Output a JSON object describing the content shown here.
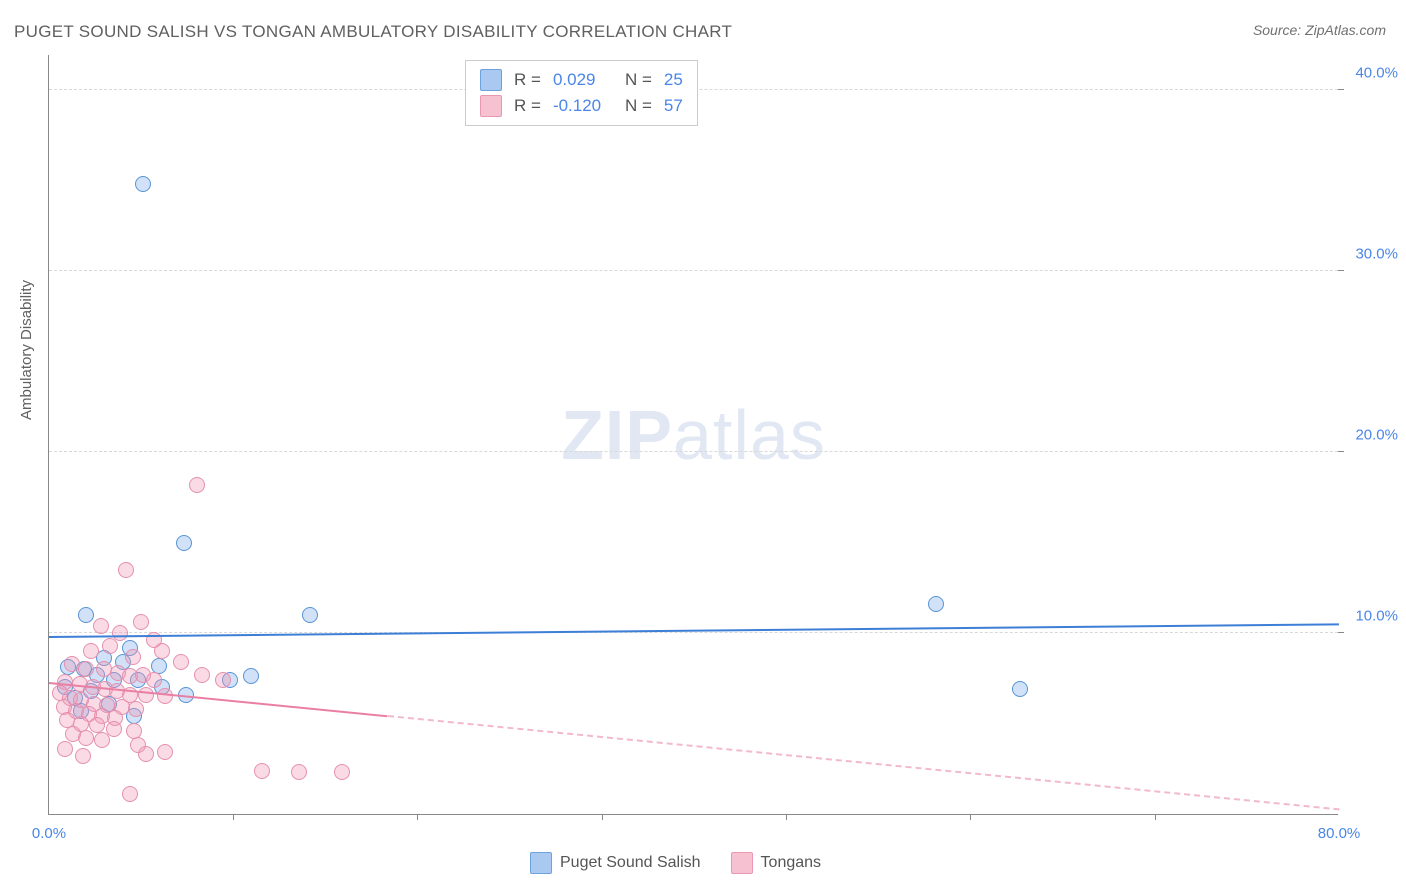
{
  "title": "PUGET SOUND SALISH VS TONGAN AMBULATORY DISABILITY CORRELATION CHART",
  "source_label": "Source: ZipAtlas.com",
  "watermark_zip": "ZIP",
  "watermark_atlas": "atlas",
  "ylabel": "Ambulatory Disability",
  "chart": {
    "type": "scatter",
    "xlim": [
      0,
      80
    ],
    "ylim": [
      0,
      42
    ],
    "xtick_labels": [
      "0.0%",
      "80.0%"
    ],
    "xtick_positions": [
      0,
      80
    ],
    "xtick_minor": [
      11.4,
      22.8,
      34.3,
      45.7,
      57.1,
      68.6
    ],
    "ytick_labels": [
      "10.0%",
      "20.0%",
      "30.0%",
      "40.0%"
    ],
    "ytick_positions": [
      10,
      20,
      30,
      40
    ],
    "background_color": "#ffffff",
    "grid_color": "#d8d8d8",
    "axis_color": "#888888",
    "tick_text_color": "#4a86e8",
    "marker_radius": 8,
    "marker_border_width": 1.3,
    "series": [
      {
        "name": "Puget Sound Salish",
        "fill": "rgba(120,170,235,0.35)",
        "stroke": "#5a94d6",
        "r_value": "0.029",
        "n_value": "25",
        "legend_swatch_fill": "#a9c9f0",
        "legend_swatch_stroke": "#6fa2dd",
        "trend": {
          "y_at_x0": 9.7,
          "y_at_xmax": 10.4,
          "color": "#3d7fd6",
          "width": 2.5,
          "dashed_after_x": 80
        },
        "points": [
          [
            5.8,
            34.8
          ],
          [
            8.4,
            15.0
          ],
          [
            16.2,
            11.0
          ],
          [
            55.0,
            11.6
          ],
          [
            60.2,
            6.9
          ],
          [
            2.3,
            11.0
          ],
          [
            5.0,
            9.2
          ],
          [
            3.4,
            8.6
          ],
          [
            4.6,
            8.4
          ],
          [
            6.8,
            8.2
          ],
          [
            1.2,
            8.1
          ],
          [
            2.2,
            8.0
          ],
          [
            3.0,
            7.7
          ],
          [
            4.0,
            7.4
          ],
          [
            5.5,
            7.4
          ],
          [
            1.0,
            7.0
          ],
          [
            2.6,
            6.8
          ],
          [
            7.0,
            7.0
          ],
          [
            8.5,
            6.6
          ],
          [
            11.2,
            7.4
          ],
          [
            12.5,
            7.6
          ],
          [
            1.6,
            6.4
          ],
          [
            3.7,
            6.1
          ],
          [
            2.0,
            5.7
          ],
          [
            5.3,
            5.4
          ]
        ]
      },
      {
        "name": "Tongans",
        "fill": "rgba(240,150,180,0.35)",
        "stroke": "#e590ae",
        "r_value": "-0.120",
        "n_value": "57",
        "legend_swatch_fill": "#f6c2d2",
        "legend_swatch_stroke": "#e998b4",
        "trend": {
          "y_at_x0": 7.2,
          "y_at_xmax": 0.2,
          "color": "#e97fa3",
          "width": 2.5,
          "dashed_after_x": 21
        },
        "points": [
          [
            9.2,
            18.2
          ],
          [
            4.8,
            13.5
          ],
          [
            3.2,
            10.4
          ],
          [
            4.4,
            10.0
          ],
          [
            5.7,
            10.6
          ],
          [
            6.5,
            9.6
          ],
          [
            3.8,
            9.3
          ],
          [
            2.6,
            9.0
          ],
          [
            5.2,
            8.7
          ],
          [
            7.0,
            9.0
          ],
          [
            8.2,
            8.4
          ],
          [
            1.4,
            8.3
          ],
          [
            2.3,
            8.0
          ],
          [
            3.4,
            8.0
          ],
          [
            4.3,
            7.8
          ],
          [
            5.0,
            7.6
          ],
          [
            5.8,
            7.7
          ],
          [
            6.5,
            7.4
          ],
          [
            1.0,
            7.3
          ],
          [
            1.9,
            7.2
          ],
          [
            2.7,
            7.0
          ],
          [
            3.5,
            6.9
          ],
          [
            4.2,
            6.8
          ],
          [
            5.0,
            6.6
          ],
          [
            6.0,
            6.6
          ],
          [
            7.2,
            6.5
          ],
          [
            0.7,
            6.7
          ],
          [
            1.3,
            6.4
          ],
          [
            2.0,
            6.3
          ],
          [
            2.8,
            6.1
          ],
          [
            3.6,
            6.0
          ],
          [
            4.5,
            5.9
          ],
          [
            5.4,
            5.8
          ],
          [
            0.9,
            5.9
          ],
          [
            1.7,
            5.7
          ],
          [
            2.5,
            5.5
          ],
          [
            3.3,
            5.4
          ],
          [
            4.1,
            5.3
          ],
          [
            1.1,
            5.2
          ],
          [
            2.0,
            5.0
          ],
          [
            3.0,
            4.9
          ],
          [
            4.0,
            4.7
          ],
          [
            5.3,
            4.6
          ],
          [
            6.0,
            3.3
          ],
          [
            7.2,
            3.4
          ],
          [
            1.5,
            4.4
          ],
          [
            2.3,
            4.2
          ],
          [
            3.3,
            4.1
          ],
          [
            13.2,
            2.4
          ],
          [
            15.5,
            2.3
          ],
          [
            18.2,
            2.3
          ],
          [
            5.0,
            1.1
          ],
          [
            5.5,
            3.8
          ],
          [
            1.0,
            3.6
          ],
          [
            9.5,
            7.7
          ],
          [
            10.8,
            7.4
          ],
          [
            2.1,
            3.2
          ]
        ]
      }
    ]
  },
  "legend_r_label": "R =",
  "legend_n_label": "N ="
}
